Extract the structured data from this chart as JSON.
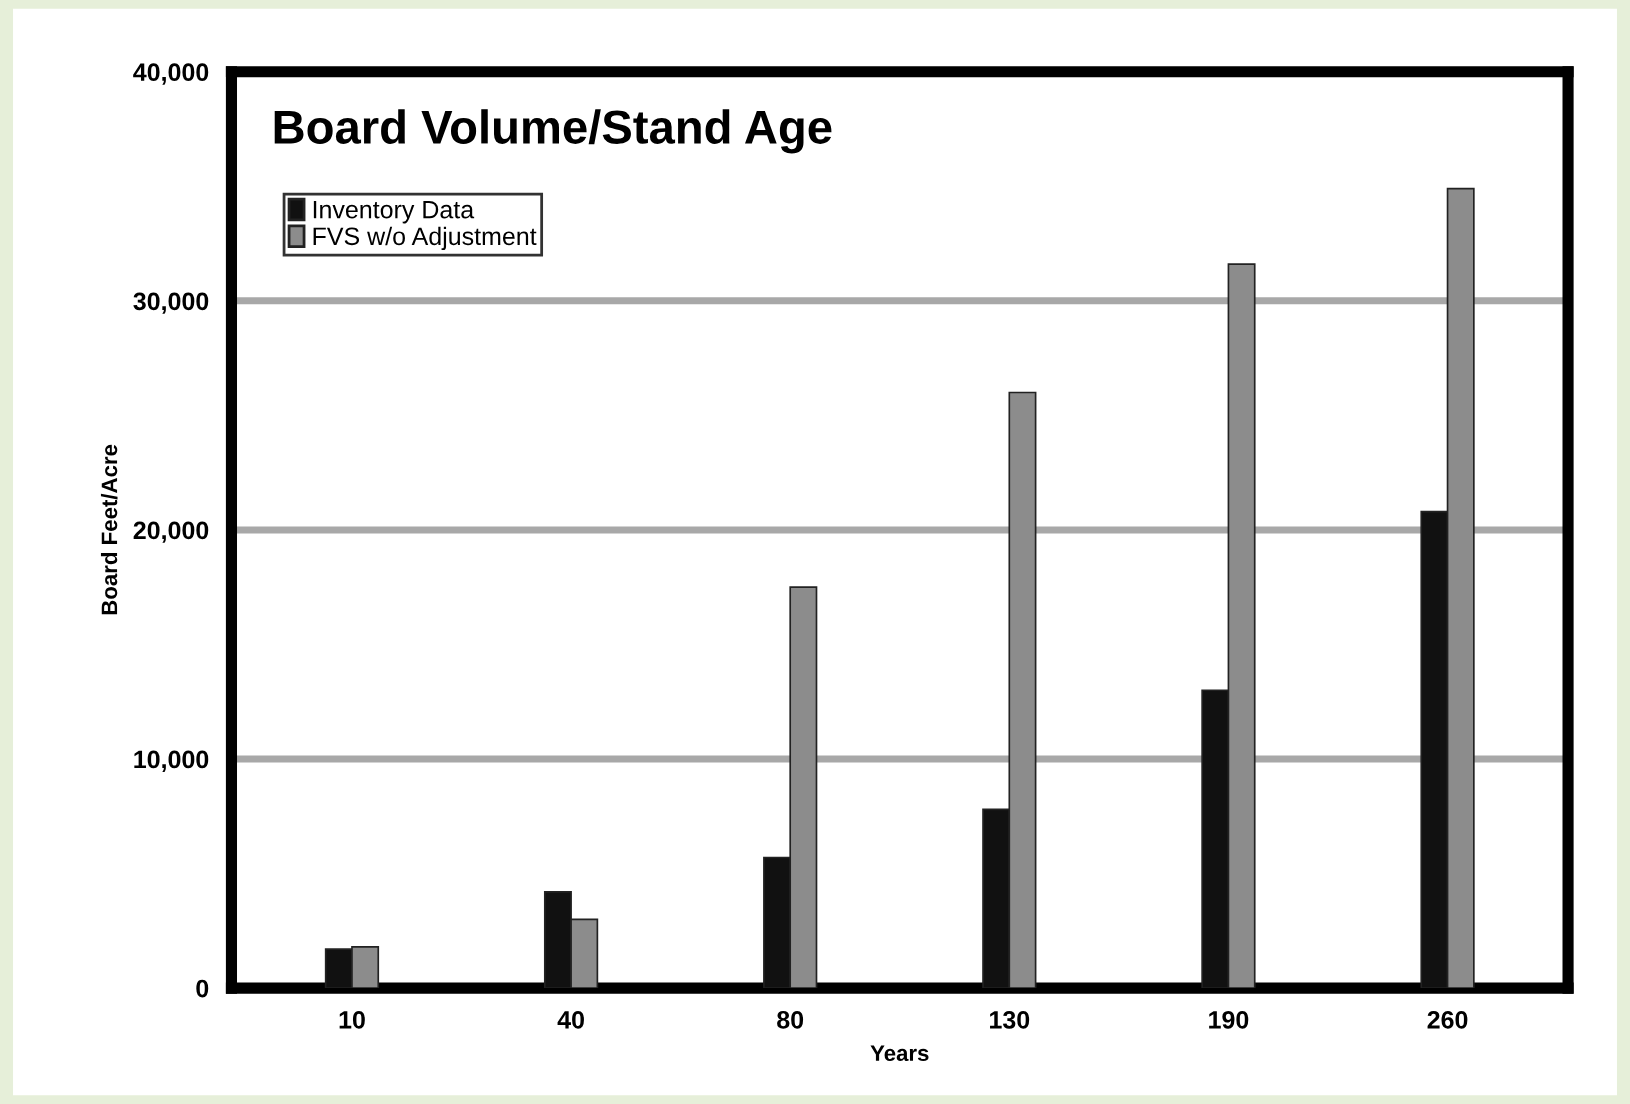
{
  "chart_data": {
    "type": "bar",
    "title": "Board Volume/Stand Age",
    "xlabel": "Years",
    "ylabel": "Board Feet/Acre",
    "categories": [
      "10",
      "40",
      "80",
      "130",
      "190",
      "260"
    ],
    "series": [
      {
        "name": "Inventory Data",
        "color": "#111111",
        "values": [
          1700,
          4200,
          5700,
          7800,
          13000,
          20800
        ]
      },
      {
        "name": "FVS w/o Adjustment",
        "color": "#8c8c8c",
        "values": [
          1800,
          3000,
          17500,
          26000,
          31600,
          34900
        ]
      }
    ],
    "ylim": [
      0,
      40000
    ],
    "yticks": [
      {
        "value": 0,
        "label": "0"
      },
      {
        "value": 10000,
        "label": "10,000"
      },
      {
        "value": 20000,
        "label": "20,000"
      },
      {
        "value": 30000,
        "label": "30,000"
      },
      {
        "value": 40000,
        "label": "40,000"
      }
    ],
    "grid": "y",
    "legend": "top left"
  }
}
